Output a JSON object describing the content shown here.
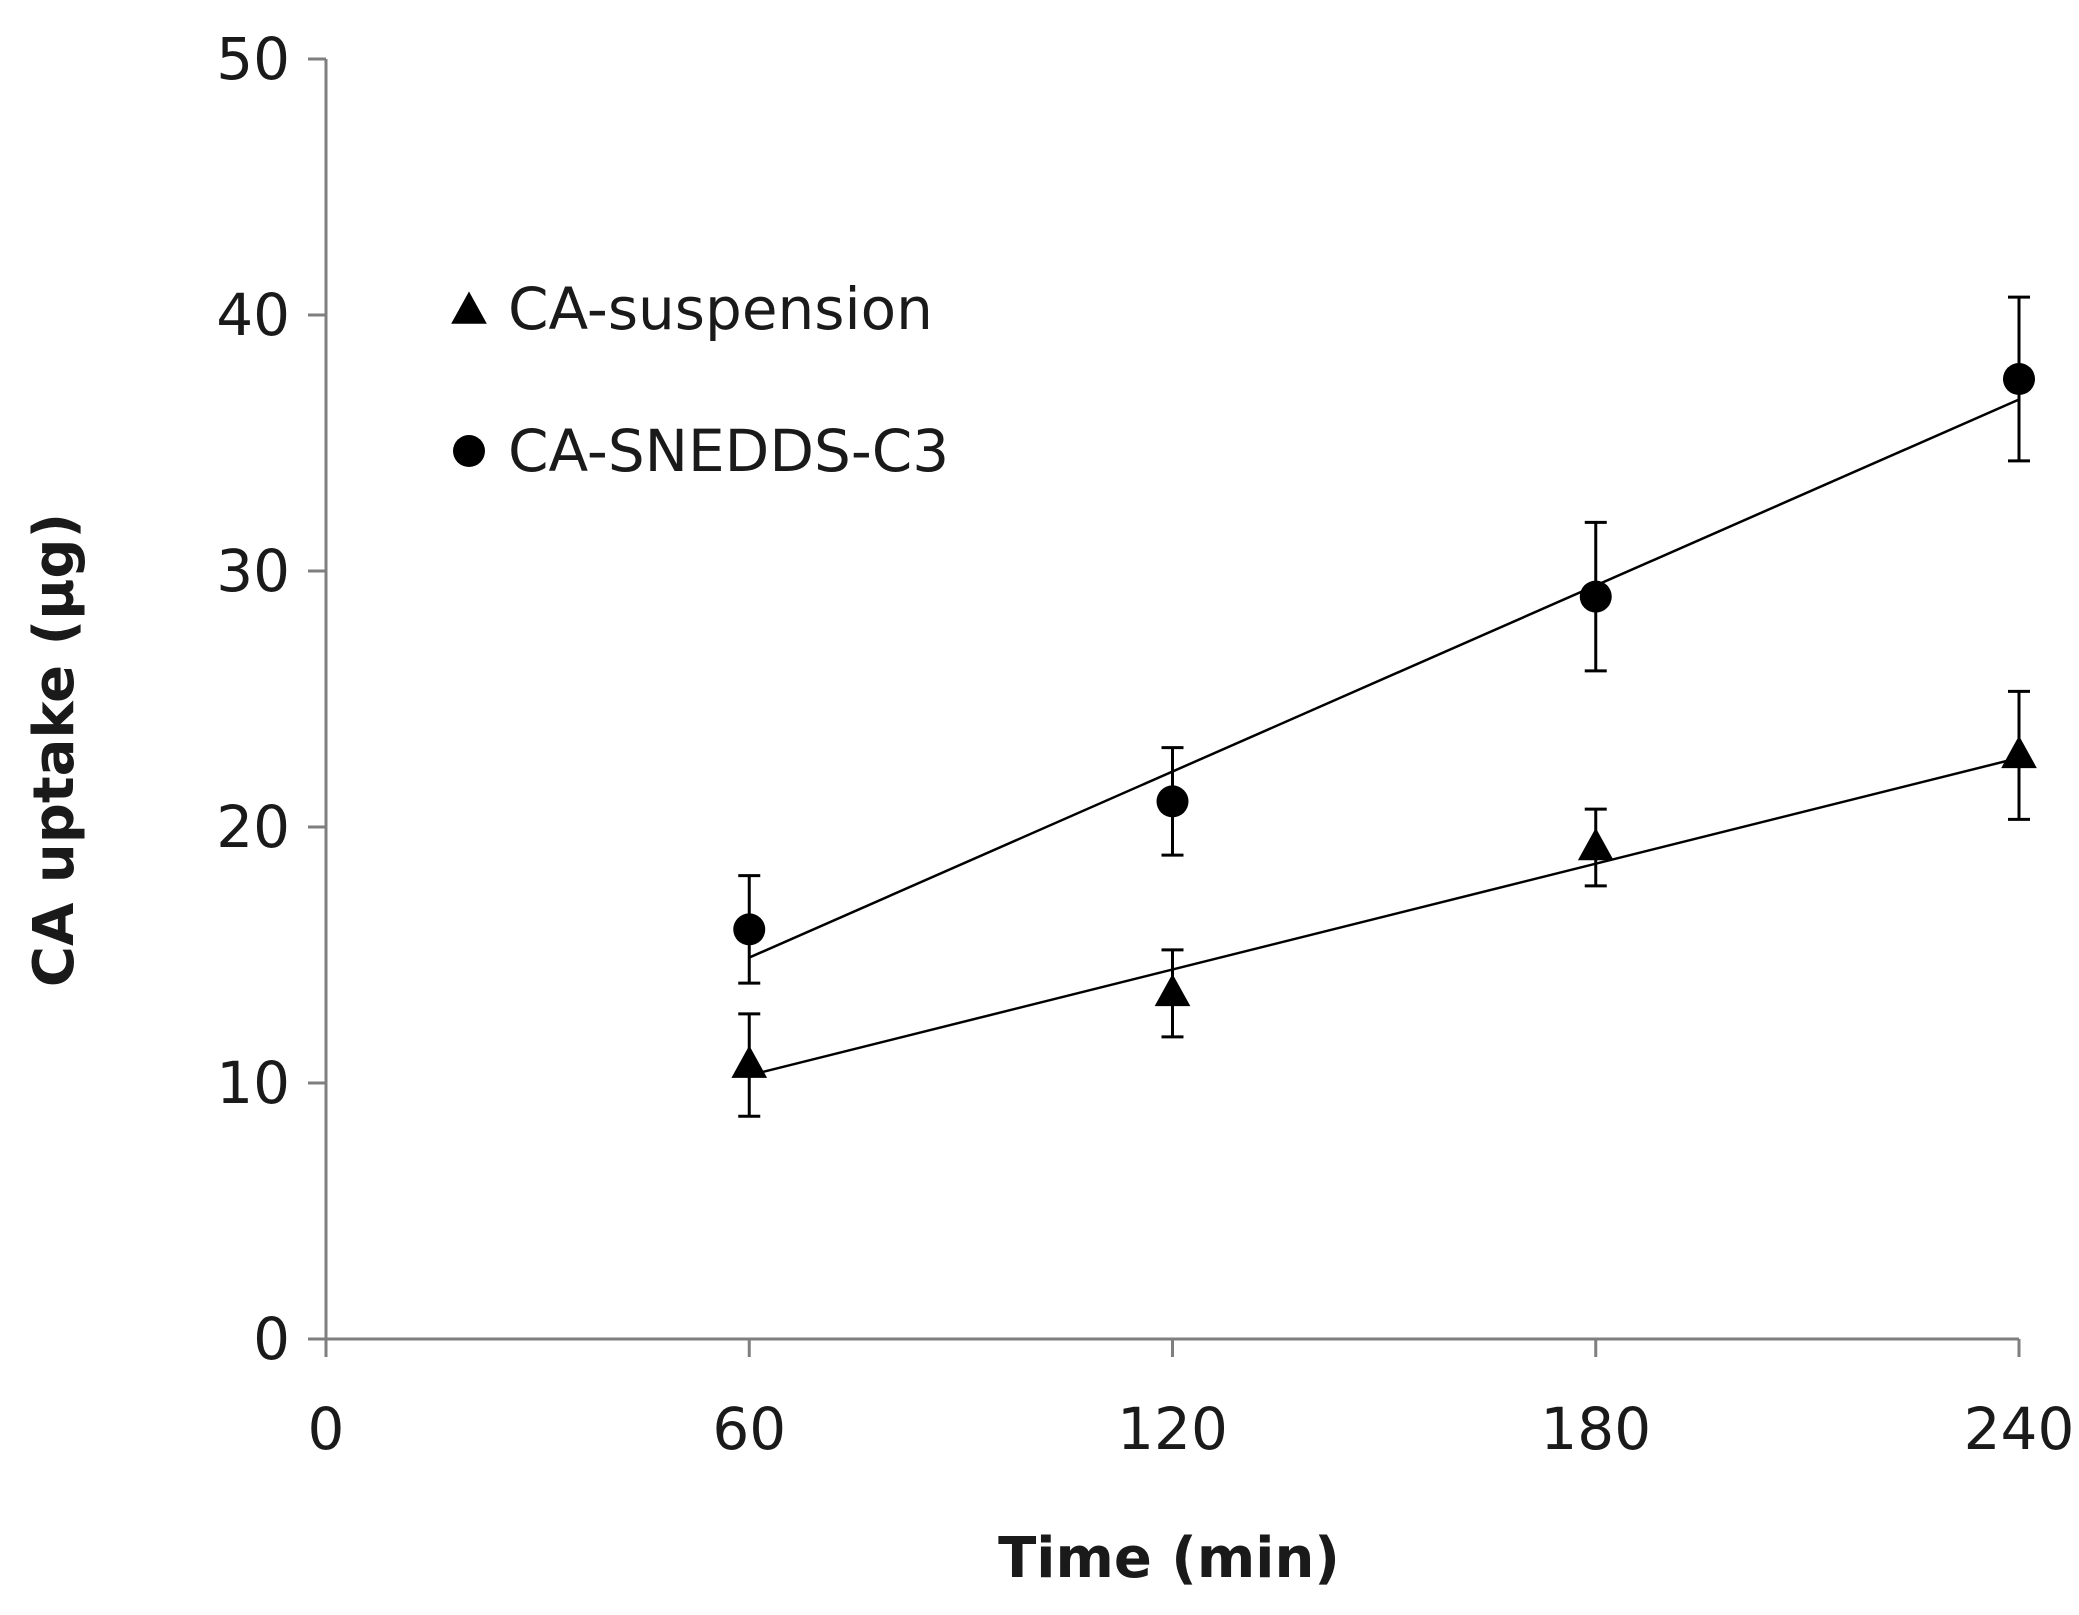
{
  "chart_data": {
    "type": "scatter",
    "title": "",
    "xlabel": "Time (min)",
    "ylabel": "CA uptake (µg)",
    "xlim": [
      0,
      240
    ],
    "ylim": [
      0,
      50
    ],
    "x_ticks": [
      0,
      60,
      120,
      180,
      240
    ],
    "y_ticks": [
      0,
      10,
      20,
      30,
      40,
      50
    ],
    "x_tick_labels": [
      "0",
      "60",
      "120",
      "180",
      "240"
    ],
    "y_tick_labels": [
      "0",
      "10",
      "20",
      "30",
      "40",
      "50"
    ],
    "grid": false,
    "legend_position": "top-left",
    "series": [
      {
        "name": "CA-suspension",
        "marker": "triangle",
        "color": "#000000",
        "x": [
          60,
          120,
          180,
          240
        ],
        "y": [
          10.7,
          13.5,
          19.2,
          22.8
        ],
        "error": [
          2.0,
          1.7,
          1.5,
          2.5
        ],
        "trendline": {
          "x": [
            60,
            240
          ],
          "y": [
            10.3,
            22.7
          ]
        }
      },
      {
        "name": "CA-SNEDDS-C3",
        "marker": "circle",
        "color": "#000000",
        "x": [
          60,
          120,
          180,
          240
        ],
        "y": [
          16.0,
          21.0,
          29.0,
          37.5
        ],
        "error": [
          2.1,
          2.1,
          2.9,
          3.2
        ],
        "trendline": {
          "x": [
            60,
            240
          ],
          "y": [
            14.9,
            36.7
          ]
        }
      }
    ]
  }
}
